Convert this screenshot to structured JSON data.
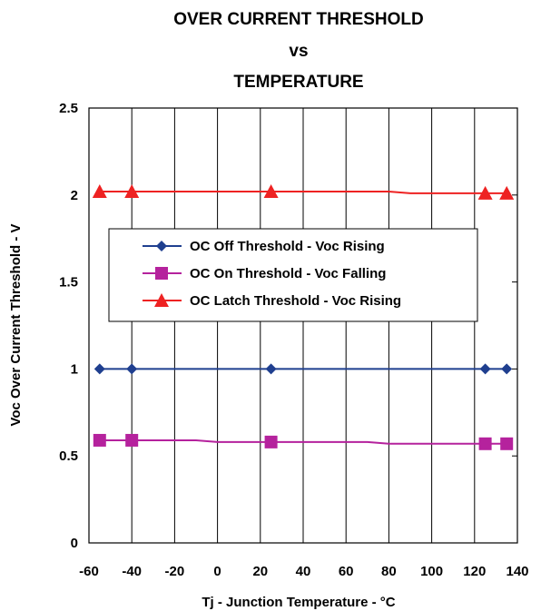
{
  "chart_data": {
    "type": "line",
    "title_lines": [
      "OVER CURRENT THRESHOLD",
      "vs",
      "TEMPERATURE"
    ],
    "xlabel": "Tj - Junction Temperature -  °C",
    "ylabel": "Voc Over Current Threshold - V",
    "xlim": [
      -60,
      140
    ],
    "ylim": [
      0,
      2.5
    ],
    "xticks": [
      -60,
      -40,
      -20,
      0,
      20,
      40,
      60,
      80,
      100,
      120,
      140
    ],
    "yticks": [
      0,
      0.5,
      1,
      1.5,
      2,
      2.5
    ],
    "ytick_labels": [
      "0",
      "0.5",
      "1",
      "1.5",
      "2",
      "2.5"
    ],
    "grid": "vertical",
    "legend_position": "center-left",
    "series": [
      {
        "name": "OC Off Threshold - Voc Rising",
        "color": "#1f3f8f",
        "marker": "diamond",
        "line": [
          [
            -55,
            1.0
          ],
          [
            135,
            1.0
          ]
        ],
        "points": [
          [
            -55,
            1.0
          ],
          [
            -40,
            1.0
          ],
          [
            25,
            1.0
          ],
          [
            125,
            1.0
          ],
          [
            135,
            1.0
          ]
        ]
      },
      {
        "name": "OC On Threshold - Voc Falling",
        "color": "#b5229d",
        "marker": "square",
        "line": [
          [
            -55,
            0.59
          ],
          [
            -10,
            0.59
          ],
          [
            0,
            0.58
          ],
          [
            70,
            0.58
          ],
          [
            80,
            0.57
          ],
          [
            135,
            0.57
          ]
        ],
        "points": [
          [
            -55,
            0.59
          ],
          [
            -40,
            0.59
          ],
          [
            25,
            0.58
          ],
          [
            125,
            0.57
          ],
          [
            135,
            0.57
          ]
        ]
      },
      {
        "name": "OC Latch Threshold - Voc Rising",
        "color": "#ee2222",
        "marker": "triangle",
        "line": [
          [
            -55,
            2.02
          ],
          [
            80,
            2.02
          ],
          [
            90,
            2.01
          ],
          [
            135,
            2.01
          ]
        ],
        "points": [
          [
            -55,
            2.02
          ],
          [
            -40,
            2.02
          ],
          [
            25,
            2.02
          ],
          [
            125,
            2.01
          ],
          [
            135,
            2.01
          ]
        ]
      }
    ]
  }
}
